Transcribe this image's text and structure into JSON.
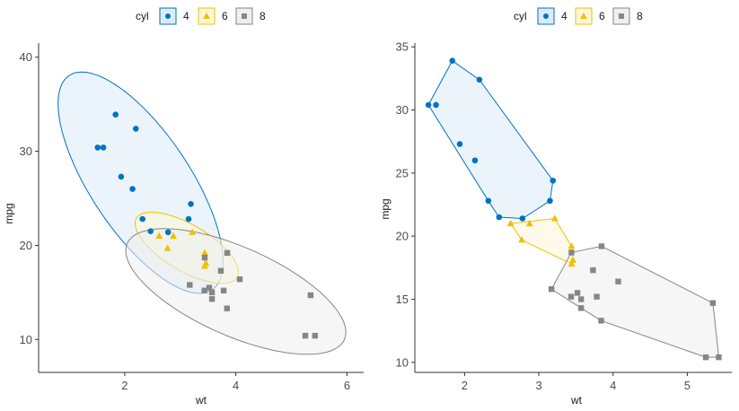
{
  "colors": {
    "4": "#0073C2",
    "6": "#EFC000",
    "8": "#868686"
  },
  "chart_data": [
    {
      "type": "scatter",
      "overlay": "ellipse",
      "title": "",
      "xlabel": "wt",
      "ylabel": "mpg",
      "xlim": [
        0.45,
        6.3
      ],
      "ylim": [
        6.5,
        41.5
      ],
      "xticks": [
        2,
        4,
        6
      ],
      "yticks": [
        10,
        20,
        30,
        40
      ],
      "grid": false,
      "legend": {
        "title": "cyl",
        "position": "top",
        "entries": [
          "4",
          "6",
          "8"
        ]
      },
      "series": [
        {
          "name": "4",
          "shape": "circle",
          "x": [
            2.32,
            3.19,
            3.15,
            2.2,
            1.615,
            1.835,
            2.465,
            1.935,
            2.14,
            1.513,
            2.78
          ],
          "y": [
            22.8,
            24.4,
            22.8,
            32.4,
            30.4,
            33.9,
            21.5,
            27.3,
            26.0,
            30.4,
            21.4
          ]
        },
        {
          "name": "6",
          "shape": "triangle",
          "x": [
            2.62,
            2.875,
            3.215,
            3.46,
            3.44,
            3.44,
            2.77
          ],
          "y": [
            21.0,
            21.0,
            21.4,
            18.1,
            19.2,
            17.8,
            19.7
          ]
        },
        {
          "name": "8",
          "shape": "square",
          "x": [
            3.44,
            3.57,
            4.07,
            3.73,
            3.78,
            5.25,
            5.424,
            5.345,
            3.52,
            3.435,
            3.84,
            3.845,
            3.17,
            3.57
          ],
          "y": [
            18.7,
            14.3,
            16.4,
            17.3,
            15.2,
            10.4,
            10.4,
            14.7,
            15.5,
            15.2,
            13.3,
            19.2,
            15.8,
            15.0
          ]
        }
      ]
    },
    {
      "type": "scatter",
      "overlay": "convex-hull",
      "title": "",
      "xlabel": "wt",
      "ylabel": "mpg",
      "xlim": [
        1.33,
        5.6
      ],
      "ylim": [
        9.2,
        35.3
      ],
      "xticks": [
        2,
        3,
        4,
        5
      ],
      "yticks": [
        10,
        15,
        20,
        25,
        30,
        35
      ],
      "grid": false,
      "legend": {
        "title": "cyl",
        "position": "top",
        "entries": [
          "4",
          "6",
          "8"
        ]
      },
      "series": "same as left panel"
    }
  ],
  "legend_labels": {
    "title": "cyl",
    "a": "4",
    "b": "6",
    "c": "8"
  },
  "axes": {
    "left": {
      "xlabel": "wt",
      "ylabel": "mpg",
      "xt": [
        "2",
        "4",
        "6"
      ],
      "yt": [
        "10",
        "20",
        "30",
        "40"
      ]
    },
    "right": {
      "xlabel": "wt",
      "ylabel": "mpg",
      "xt": [
        "2",
        "3",
        "4",
        "5"
      ],
      "yt": [
        "10",
        "15",
        "20",
        "25",
        "30",
        "35"
      ]
    }
  }
}
